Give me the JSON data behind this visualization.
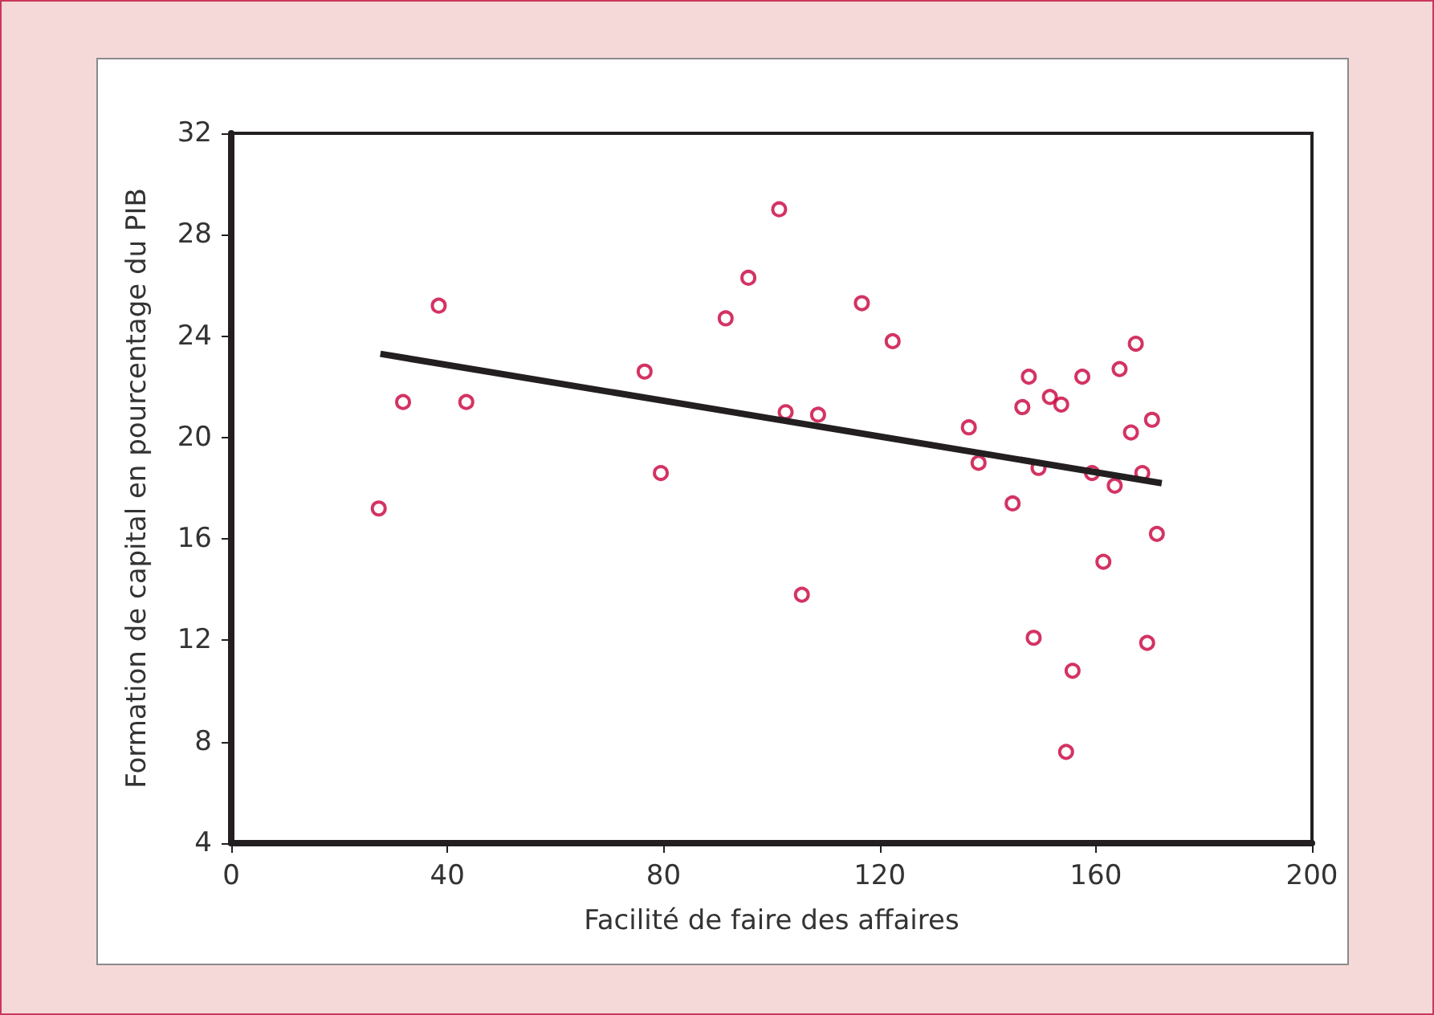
{
  "chart_data": {
    "type": "scatter",
    "xlabel": "Facilité de faire des affaires",
    "ylabel": "Formation de capital en pourcentage du PIB",
    "xlim": [
      0,
      200
    ],
    "xticks": [
      0,
      40,
      80,
      120,
      160,
      200
    ],
    "ylim": [
      4,
      32
    ],
    "yticks": [
      4,
      8,
      12,
      16,
      20,
      24,
      28,
      32
    ],
    "grid": false,
    "marker": "circle",
    "series": [
      {
        "color": "#c8003c",
        "x": [
          27.3,
          31.8,
          38.4,
          43.5,
          76.5,
          79.5,
          91.5,
          95.7,
          101.4,
          102.6,
          105.6,
          108.6,
          116.7,
          122.4,
          136.5,
          138.3,
          144.6,
          146.4,
          147.6,
          148.5,
          149.4,
          151.5,
          153.6,
          154.5,
          155.7,
          157.5,
          159.3,
          161.4,
          163.5,
          164.4,
          166.5,
          167.4,
          168.6,
          169.5,
          170.4,
          171.3
        ],
        "values": [
          17.2,
          21.4,
          25.2,
          21.4,
          22.6,
          18.6,
          24.7,
          26.3,
          29.0,
          21.0,
          13.8,
          20.9,
          25.3,
          23.8,
          20.4,
          19.0,
          17.4,
          21.2,
          22.4,
          12.1,
          18.8,
          21.6,
          21.3,
          7.6,
          10.8,
          22.4,
          18.6,
          15.1,
          18.1,
          22.7,
          20.2,
          23.7,
          18.6,
          11.9,
          20.7,
          16.2
        ]
      },
      {
        "type": "line",
        "color": "#231f20",
        "marker": "none",
        "x": [
          27.6,
          172.2
        ],
        "values": [
          23.3,
          18.2
        ]
      }
    ]
  }
}
